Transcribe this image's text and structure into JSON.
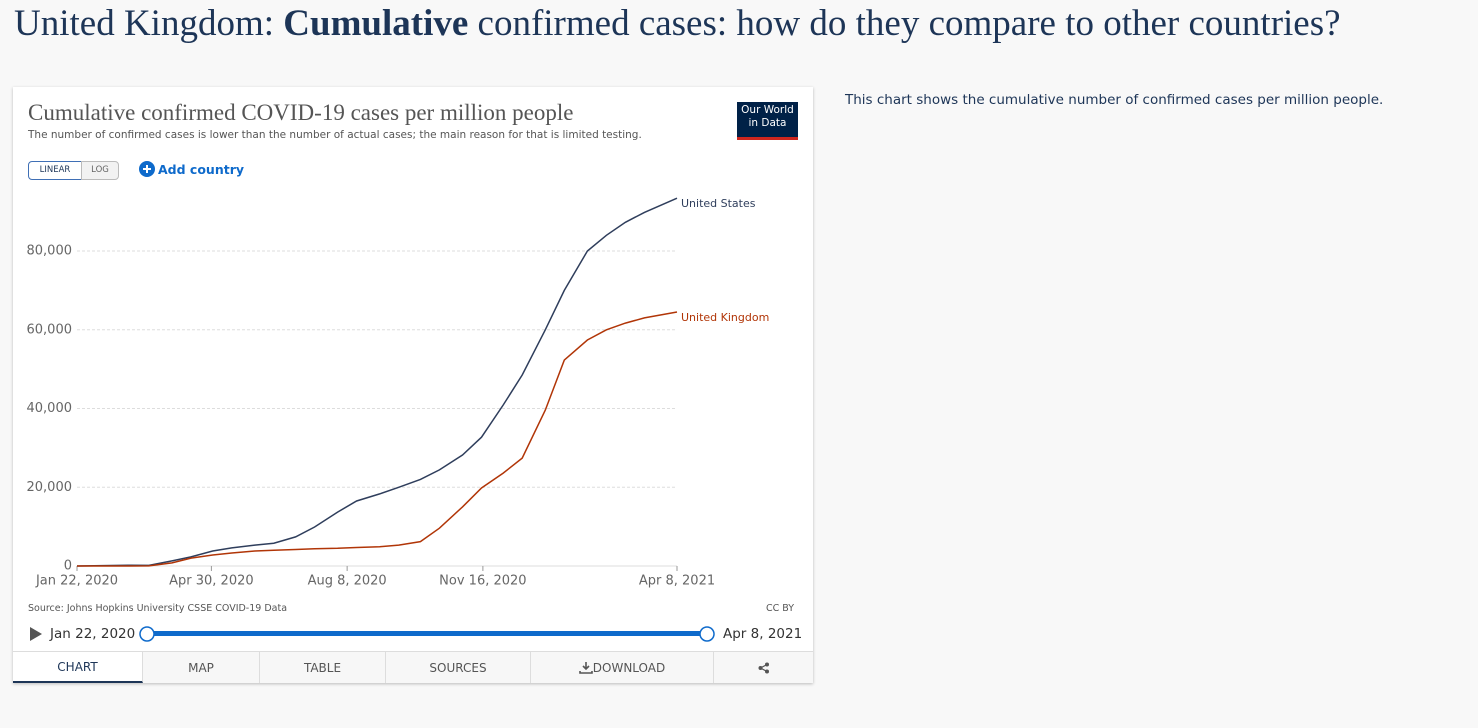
{
  "header": {
    "title_parts": [
      "United Kingdom: ",
      "Cumulative",
      " confirmed cases: how do they compare to other countries?"
    ]
  },
  "description": "This chart shows the cumulative number of confirmed cases per million people.",
  "controls": {
    "scale_buttons": [
      "LINEAR",
      "LOG"
    ],
    "add_country": "Add country"
  },
  "logo": [
    "Our World",
    "in Data"
  ],
  "source": "Source: Johns Hopkins University CSSE COVID-19 Data",
  "license": "CC BY",
  "timeline": {
    "start": "Jan 22, 2020",
    "end": "Apr 8, 2021"
  },
  "tabs": [
    "CHART",
    "MAP",
    "TABLE",
    "SOURCES",
    "DOWNLOAD"
  ],
  "chart_data": {
    "type": "line",
    "title": "Cumulative confirmed COVID-19 cases per million people",
    "subtitle": "The number of confirmed cases is lower than the number of actual cases; the main reason for that is limited testing.",
    "x": [
      "2020-01-22",
      "2020-03-01",
      "2020-03-15",
      "2020-04-01",
      "2020-04-15",
      "2020-05-01",
      "2020-05-15",
      "2020-06-01",
      "2020-06-15",
      "2020-07-01",
      "2020-07-15",
      "2020-08-01",
      "2020-08-15",
      "2020-09-01",
      "2020-09-15",
      "2020-10-01",
      "2020-10-15",
      "2020-11-01",
      "2020-11-15",
      "2020-12-01",
      "2020-12-15",
      "2021-01-01",
      "2021-01-15",
      "2021-02-01",
      "2021-02-15",
      "2021-03-01",
      "2021-03-15",
      "2021-04-08"
    ],
    "series": [
      {
        "name": "United States",
        "color": "#2f3e5c",
        "values": [
          0,
          200,
          150,
          1300,
          2300,
          3800,
          4600,
          5300,
          5800,
          7400,
          9900,
          13700,
          16500,
          18300,
          20000,
          22000,
          24400,
          28200,
          32700,
          40900,
          48500,
          60000,
          70000,
          80000,
          84000,
          87300,
          89800,
          93400
        ]
      },
      {
        "name": "United Kingdom",
        "color": "#b13507",
        "values": [
          0,
          0,
          20,
          800,
          2000,
          2800,
          3300,
          3800,
          4000,
          4200,
          4400,
          4500,
          4700,
          4900,
          5300,
          6200,
          9600,
          15000,
          19800,
          23600,
          27400,
          39600,
          52300,
          57400,
          60000,
          61700,
          63000,
          64500
        ]
      }
    ],
    "xlim": [
      "2020-01-22",
      "2021-04-08"
    ],
    "xticks": [
      {
        "value": "2020-01-22",
        "label": "Jan 22, 2020"
      },
      {
        "value": "2020-04-30",
        "label": "Apr 30, 2020"
      },
      {
        "value": "2020-08-08",
        "label": "Aug 8, 2020"
      },
      {
        "value": "2020-11-16",
        "label": "Nov 16, 2020"
      },
      {
        "value": "2021-04-08",
        "label": "Apr 8, 2021"
      }
    ],
    "ylim": [
      0,
      95000
    ],
    "yticks": [
      0,
      {
        "value": 20000,
        "label": "20,000"
      },
      {
        "value": 40000,
        "label": "40,000"
      },
      {
        "value": 60000,
        "label": "60,000"
      },
      {
        "value": 80000,
        "label": "80,000"
      }
    ],
    "grid": true
  }
}
